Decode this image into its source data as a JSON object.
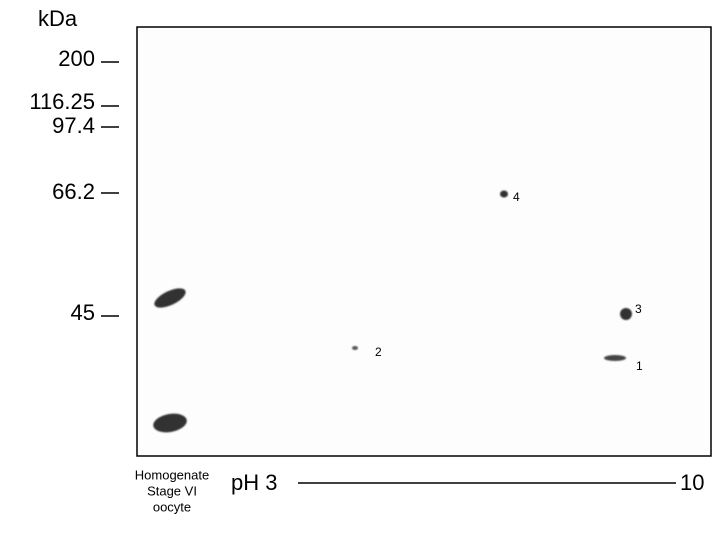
{
  "axis": {
    "unit": "kDa",
    "markers": [
      "200",
      "116.25",
      "97.4",
      "66.2",
      "45"
    ]
  },
  "spots": [
    {
      "label": "1"
    },
    {
      "label": "2"
    },
    {
      "label": "3"
    },
    {
      "label": "4"
    }
  ],
  "lane": {
    "lines": [
      "Homogenate",
      "Stage VI",
      "oocyte"
    ]
  },
  "ph": {
    "start": "pH 3",
    "end": "10"
  }
}
